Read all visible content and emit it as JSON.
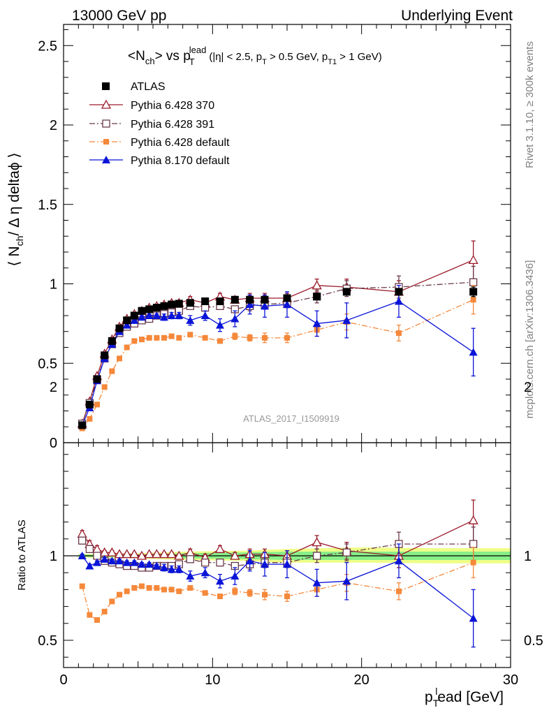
{
  "header": {
    "left": "13000 GeV pp",
    "right": "Underlying Event"
  },
  "side": {
    "rivet": "Rivet 3.1.10, ≥ 300k events",
    "mcplots": "mcplots.cern.ch [arXiv:1306.3436]"
  },
  "title": {
    "main": "<N",
    "sub_ch": "ch",
    "vs": "> vs p",
    "sub_T": "T",
    "sup_lead": "lead",
    "cuts_open": "(|η| < 2.5, p",
    "cuts_T": "T",
    "cuts_mid": " > 0.5 GeV, p",
    "cuts_T1": "T1",
    "cuts_close": " > 1 GeV)"
  },
  "ylabel_main": "⟨ N",
  "ylabel_main_sub": "ch",
  "ylabel_main_rest": "/ Δ η deltaϕ ⟩",
  "ylabel_ratio": "Ratio to ATLAS",
  "xlabel_p": "p",
  "xlabel_sub": "T",
  "xlabel_sup": "l",
  "xlabel_rest": "ead [GeV]",
  "watermark": "ATLAS_2017_I1509919",
  "legend": {
    "atlas": "ATLAS",
    "py370": "Pythia 6.428 370",
    "py391": "Pythia 6.428 391",
    "py6def": "Pythia 6.428 default",
    "py8def": "Pythia 8.170 default"
  },
  "colors": {
    "atlas": "#000000",
    "py370": "#9a1a2a",
    "py391": "#6b3a4a",
    "py6def": "#f5883a",
    "py8def": "#0a14d8",
    "band_inner": "#88ee88",
    "band_outer": "#eeff88"
  },
  "chart_data": [
    {
      "type": "scatter",
      "title": "<Nch> vs pT lead (|η| < 2.5, pT > 0.5 GeV, pT1 > 1 GeV)",
      "xlabel": "pT lead [GeV]",
      "ylabel": "⟨ Nch / Δη deltaϕ ⟩",
      "xlim": [
        0,
        30
      ],
      "ylim": [
        0,
        2.6
      ],
      "y_ticks": [
        "0",
        "0.5",
        "1",
        "1.5",
        "2",
        "2.5"
      ],
      "x_ticks": [
        "0",
        "10",
        "20",
        "30"
      ],
      "legend_position": "top-left",
      "x": [
        1.25,
        1.75,
        2.25,
        2.75,
        3.25,
        3.75,
        4.25,
        4.75,
        5.25,
        5.75,
        6.25,
        6.75,
        7.25,
        7.75,
        8.5,
        9.5,
        10.5,
        11.5,
        12.5,
        13.5,
        15.0,
        17.0,
        19.0,
        22.5,
        27.5
      ],
      "series": [
        {
          "name": "ATLAS",
          "marker": "square-filled",
          "values": [
            0.11,
            0.24,
            0.4,
            0.55,
            0.64,
            0.72,
            0.77,
            0.8,
            0.83,
            0.84,
            0.85,
            0.86,
            0.87,
            0.875,
            0.88,
            0.89,
            0.89,
            0.9,
            0.9,
            0.9,
            0.91,
            0.92,
            0.95,
            0.95,
            0.95
          ],
          "errors": [
            0.01,
            0.01,
            0.01,
            0.01,
            0.01,
            0.01,
            0.01,
            0.01,
            0.01,
            0.01,
            0.01,
            0.01,
            0.01,
            0.01,
            0.01,
            0.01,
            0.01,
            0.01,
            0.01,
            0.01,
            0.01,
            0.01,
            0.01,
            0.02,
            0.03
          ]
        },
        {
          "name": "Pythia 6.428 370",
          "marker": "triangle-open",
          "line": "solid",
          "values": [
            0.12,
            0.26,
            0.42,
            0.56,
            0.65,
            0.73,
            0.78,
            0.81,
            0.83,
            0.85,
            0.86,
            0.87,
            0.88,
            0.88,
            0.9,
            0.88,
            0.92,
            0.9,
            0.91,
            0.91,
            0.91,
            0.99,
            0.98,
            0.95,
            1.15
          ],
          "errors": [
            0.01,
            0.01,
            0.01,
            0.01,
            0.01,
            0.01,
            0.01,
            0.01,
            0.01,
            0.01,
            0.01,
            0.01,
            0.01,
            0.01,
            0.02,
            0.02,
            0.02,
            0.02,
            0.03,
            0.03,
            0.03,
            0.04,
            0.05,
            0.07,
            0.12
          ]
        },
        {
          "name": "Pythia 6.428 391",
          "marker": "square-open",
          "line": "dashdot",
          "values": [
            0.12,
            0.25,
            0.4,
            0.53,
            0.62,
            0.69,
            0.73,
            0.75,
            0.77,
            0.78,
            0.8,
            0.81,
            0.82,
            0.83,
            0.86,
            0.85,
            0.86,
            0.84,
            0.86,
            0.87,
            0.88,
            0.92,
            0.97,
            0.98,
            1.01
          ],
          "errors": [
            0.01,
            0.01,
            0.01,
            0.01,
            0.01,
            0.01,
            0.01,
            0.01,
            0.01,
            0.01,
            0.01,
            0.01,
            0.01,
            0.01,
            0.02,
            0.02,
            0.02,
            0.02,
            0.03,
            0.03,
            0.03,
            0.04,
            0.05,
            0.07,
            0.1
          ]
        },
        {
          "name": "Pythia 6.428 default",
          "marker": "square-filled-small",
          "line": "dashdot",
          "values": [
            0.09,
            0.15,
            0.24,
            0.35,
            0.45,
            0.53,
            0.6,
            0.64,
            0.65,
            0.66,
            0.66,
            0.66,
            0.67,
            0.66,
            0.68,
            0.66,
            0.64,
            0.67,
            0.66,
            0.66,
            0.66,
            0.71,
            0.76,
            0.69,
            0.9
          ],
          "errors": [
            0.005,
            0.005,
            0.01,
            0.01,
            0.01,
            0.01,
            0.01,
            0.01,
            0.01,
            0.01,
            0.01,
            0.01,
            0.01,
            0.01,
            0.01,
            0.01,
            0.01,
            0.02,
            0.02,
            0.03,
            0.03,
            0.04,
            0.05,
            0.05,
            0.09
          ]
        },
        {
          "name": "Pythia 8.170 default",
          "marker": "triangle-filled",
          "line": "solid",
          "values": [
            0.11,
            0.22,
            0.39,
            0.53,
            0.62,
            0.7,
            0.74,
            0.77,
            0.79,
            0.8,
            0.8,
            0.79,
            0.8,
            0.8,
            0.77,
            0.8,
            0.74,
            0.78,
            0.87,
            0.86,
            0.87,
            0.75,
            0.77,
            0.89,
            0.57
          ],
          "errors": [
            0.01,
            0.01,
            0.01,
            0.01,
            0.01,
            0.01,
            0.01,
            0.01,
            0.01,
            0.01,
            0.01,
            0.02,
            0.02,
            0.02,
            0.03,
            0.03,
            0.04,
            0.05,
            0.06,
            0.07,
            0.08,
            0.08,
            0.11,
            0.1,
            0.15
          ]
        }
      ]
    },
    {
      "type": "scatter",
      "ylabel": "Ratio to ATLAS",
      "xlim": [
        0,
        30
      ],
      "ylim": [
        0.33,
        2.33
      ],
      "y_ticks": [
        "0.5",
        "1",
        "2"
      ],
      "reference_line": 1,
      "band": {
        "inner": [
          [
            1.0,
            0.994,
            1.006
          ],
          [
            5.0,
            0.992,
            1.008
          ],
          [
            8.0,
            0.985,
            1.015
          ],
          [
            12.0,
            0.98,
            1.02
          ],
          [
            15.0,
            0.975,
            1.025
          ],
          [
            20.0,
            0.975,
            1.025
          ],
          [
            25.0,
            0.975,
            1.025
          ],
          [
            30.0,
            0.975,
            1.025
          ]
        ],
        "outer": [
          [
            1.0,
            0.99,
            1.01
          ],
          [
            5.0,
            0.985,
            1.015
          ],
          [
            8.0,
            0.975,
            1.025
          ],
          [
            12.0,
            0.97,
            1.03
          ],
          [
            15.0,
            0.96,
            1.04
          ],
          [
            20.0,
            0.96,
            1.05
          ],
          [
            25.0,
            0.955,
            1.045
          ],
          [
            30.0,
            0.955,
            1.045
          ]
        ]
      },
      "x": [
        1.25,
        1.75,
        2.25,
        2.75,
        3.25,
        3.75,
        4.25,
        4.75,
        5.25,
        5.75,
        6.25,
        6.75,
        7.25,
        7.75,
        8.5,
        9.5,
        10.5,
        11.5,
        12.5,
        13.5,
        15.0,
        17.0,
        19.0,
        22.5,
        27.5
      ],
      "series": [
        {
          "name": "Pythia 6.428 370",
          "marker": "triangle-open",
          "line": "solid",
          "values": [
            1.13,
            1.07,
            1.04,
            1.02,
            1.02,
            1.01,
            1.01,
            1.01,
            1.0,
            1.01,
            1.01,
            1.01,
            1.01,
            1.0,
            1.02,
            0.99,
            1.04,
            1.0,
            1.01,
            1.01,
            1.0,
            1.08,
            1.03,
            1.0,
            1.21
          ],
          "errors": [
            0.02,
            0.02,
            0.02,
            0.01,
            0.01,
            0.01,
            0.01,
            0.01,
            0.01,
            0.01,
            0.01,
            0.01,
            0.01,
            0.01,
            0.02,
            0.02,
            0.02,
            0.02,
            0.03,
            0.03,
            0.03,
            0.04,
            0.05,
            0.07,
            0.12
          ]
        },
        {
          "name": "Pythia 6.428 391",
          "marker": "square-open",
          "line": "dashdot",
          "values": [
            1.09,
            1.04,
            1.0,
            0.97,
            0.96,
            0.95,
            0.94,
            0.94,
            0.93,
            0.93,
            0.94,
            0.94,
            0.94,
            0.95,
            0.98,
            0.96,
            0.96,
            0.94,
            0.95,
            0.96,
            0.96,
            1.0,
            1.02,
            1.07,
            1.07
          ],
          "errors": [
            0.02,
            0.02,
            0.01,
            0.01,
            0.01,
            0.01,
            0.01,
            0.01,
            0.01,
            0.01,
            0.01,
            0.01,
            0.01,
            0.01,
            0.02,
            0.02,
            0.02,
            0.02,
            0.03,
            0.03,
            0.03,
            0.04,
            0.05,
            0.07,
            0.1
          ]
        },
        {
          "name": "Pythia 6.428 default",
          "marker": "square-filled-small",
          "line": "dashdot",
          "values": [
            0.82,
            0.65,
            0.62,
            0.67,
            0.73,
            0.77,
            0.79,
            0.81,
            0.82,
            0.81,
            0.81,
            0.8,
            0.8,
            0.79,
            0.81,
            0.78,
            0.76,
            0.79,
            0.78,
            0.77,
            0.76,
            0.8,
            0.84,
            0.79,
            0.96
          ],
          "errors": [
            0.01,
            0.01,
            0.01,
            0.01,
            0.01,
            0.01,
            0.01,
            0.01,
            0.01,
            0.01,
            0.01,
            0.01,
            0.01,
            0.01,
            0.01,
            0.01,
            0.01,
            0.02,
            0.02,
            0.03,
            0.03,
            0.04,
            0.05,
            0.05,
            0.09
          ]
        },
        {
          "name": "Pythia 8.170 default",
          "marker": "triangle-filled",
          "line": "solid",
          "values": [
            1.0,
            0.94,
            0.96,
            0.98,
            0.97,
            0.97,
            0.96,
            0.96,
            0.95,
            0.95,
            0.94,
            0.93,
            0.92,
            0.92,
            0.88,
            0.9,
            0.85,
            0.88,
            0.97,
            0.95,
            0.95,
            0.84,
            0.85,
            0.97,
            0.63
          ],
          "errors": [
            0.01,
            0.01,
            0.01,
            0.01,
            0.01,
            0.01,
            0.01,
            0.01,
            0.01,
            0.01,
            0.01,
            0.02,
            0.02,
            0.02,
            0.03,
            0.03,
            0.04,
            0.05,
            0.06,
            0.07,
            0.08,
            0.08,
            0.11,
            0.1,
            0.17
          ]
        }
      ]
    }
  ]
}
